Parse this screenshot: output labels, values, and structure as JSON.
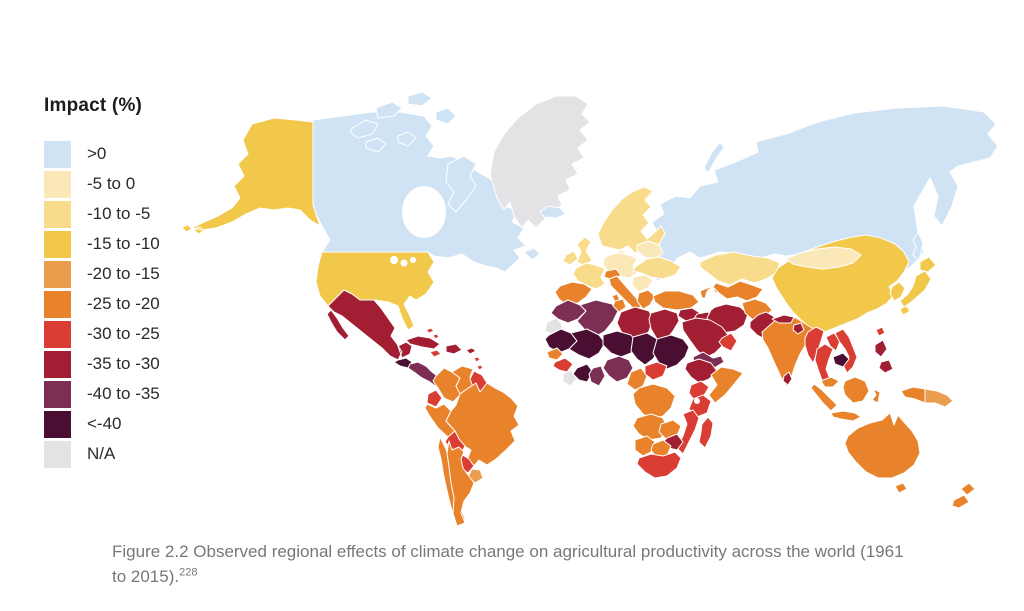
{
  "legend": {
    "title": "Impact (%)",
    "items": [
      {
        "key": "gt0",
        "label": ">0",
        "color": "#cfe3f4"
      },
      {
        "key": "n5_0",
        "label": "-5 to 0",
        "color": "#fbe8b9"
      },
      {
        "key": "n10_5",
        "label": "-10 to -5",
        "color": "#f8dc8b"
      },
      {
        "key": "n15_10",
        "label": "-15 to -10",
        "color": "#f2c84b"
      },
      {
        "key": "n20_15",
        "label": "-20 to -15",
        "color": "#eb9d4e"
      },
      {
        "key": "n25_20",
        "label": "-25 to -20",
        "color": "#e8832b"
      },
      {
        "key": "n30_25",
        "label": "-30 to -25",
        "color": "#d93d33"
      },
      {
        "key": "n35_30",
        "label": "-35 to -30",
        "color": "#a21e33"
      },
      {
        "key": "n40_35",
        "label": "-40 to -35",
        "color": "#7c2f53"
      },
      {
        "key": "lt40",
        "label": "<-40",
        "color": "#4a0e33"
      },
      {
        "key": "na",
        "label": "N/A",
        "color": "#e3e3e5"
      }
    ]
  },
  "caption": {
    "text": "Figure 2.2 Observed regional effects of climate change on agricultural productivity across the world (1961 to 2015).",
    "footnote_ref": "228"
  },
  "chart_data": {
    "type": "heatmap",
    "subtype": "world-choropleth",
    "title": "Impact (%)",
    "regions": {
      "russia": "gt0",
      "canada": "gt0",
      "canadian-arctic": "gt0",
      "iceland": "gt0",
      "sakhalin": "gt0",
      "greenland": "na",
      "western-sahara": "na",
      "liberia": "na",
      "alaska": "n15_10",
      "usa": "n15_10",
      "china": "n15_10",
      "korea": "n15_10",
      "japan": "n15_10",
      "mexico": "n35_30",
      "guatemala": "lt40",
      "central-america": "n40_35",
      "greater-antilles": "n35_30",
      "lesser-antilles": "n30_25",
      "colombia": "n25_20",
      "venezuela": "n25_20",
      "guyana": "n30_25",
      "ecuador": "n30_25",
      "peru": "n25_20",
      "brazil": "n25_20",
      "bolivia": "n30_25",
      "paraguay": "n30_25",
      "uruguay": "n20_15",
      "chile": "n25_20",
      "argentina": "n25_20",
      "scandinavia": "n10_5",
      "denmark": "n5_0",
      "uk": "n10_5",
      "ireland": "n10_5",
      "france": "n10_5",
      "iberia": "n25_20",
      "germany-central-europe": "n5_0",
      "baltic-belarus": "n5_0",
      "ukraine-eastern-europe": "n10_5",
      "alps": "n25_20",
      "italy": "n25_20",
      "balkans": "n5_0",
      "greece": "n25_20",
      "turkey": "n25_20",
      "caucasus": "n25_20",
      "levant": "n35_30",
      "iraq": "n35_30",
      "iran": "n35_30",
      "saudi-arabia": "n35_30",
      "yemen": "n40_35",
      "oman": "n30_25",
      "kazakhstan": "n10_5",
      "central-asia": "n25_20",
      "afghanistan": "n25_20",
      "pakistan": "n35_30",
      "india": "n25_20",
      "nepal": "n35_30",
      "bangladesh": "n35_30",
      "sri-lanka": "n35_30",
      "mongolia": "n5_0",
      "taiwan": "n30_25",
      "myanmar": "n30_25",
      "laos": "n30_25",
      "thailand": "n30_25",
      "cambodia": "lt40",
      "vietnam": "n30_25",
      "malaysia": "n25_20",
      "indonesia": "n25_20",
      "philippines": "n35_30",
      "new-guinea-west": "n25_20",
      "papua-new-guinea": "n20_15",
      "australia": "n25_20",
      "new-zealand": "n25_20",
      "morocco": "n40_35",
      "algeria": "n40_35",
      "tunisia": "n25_20",
      "libya": "n35_30",
      "egypt": "n35_30",
      "mauritania": "lt40",
      "mali": "lt40",
      "niger": "lt40",
      "chad": "lt40",
      "sudan": "lt40",
      "senegal": "n25_20",
      "guinea": "n30_25",
      "ivory-coast": "lt40",
      "ghana": "n40_35",
      "nigeria": "n40_35",
      "cameroon": "n25_20",
      "central-african-republic": "n30_25",
      "ethiopia": "n35_30",
      "somalia": "n25_20",
      "kenya": "n30_25",
      "drc": "n25_20",
      "tanzania": "n30_25",
      "angola": "n25_20",
      "zambia": "n25_20",
      "mozambique": "n30_25",
      "zimbabwe": "n35_30",
      "namibia": "n25_20",
      "botswana": "n25_20",
      "south-africa": "n30_25",
      "madagascar": "n30_25"
    }
  }
}
